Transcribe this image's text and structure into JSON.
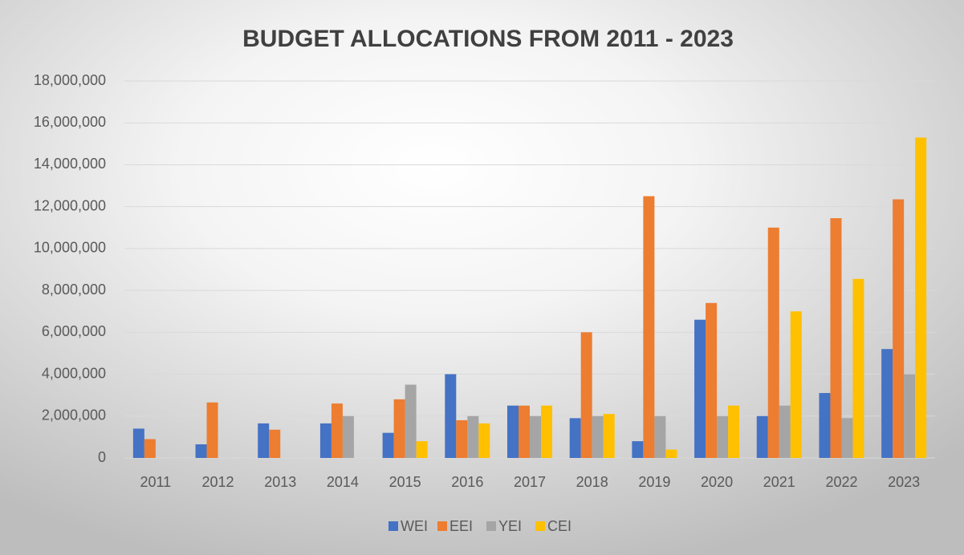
{
  "chart_data": {
    "type": "bar",
    "title": "BUDGET ALLOCATIONS FROM 2011 - 2023",
    "categories": [
      "2011",
      "2012",
      "2013",
      "2014",
      "2015",
      "2016",
      "2017",
      "2018",
      "2019",
      "2020",
      "2021",
      "2022",
      "2023"
    ],
    "series": [
      {
        "name": "WEI",
        "color": "#4472c4",
        "values": [
          1400000,
          650000,
          1650000,
          1650000,
          1200000,
          4000000,
          2500000,
          1900000,
          800000,
          6600000,
          2000000,
          3100000,
          5200000
        ]
      },
      {
        "name": "EEI",
        "color": "#ed7d31",
        "values": [
          900000,
          2650000,
          1350000,
          2600000,
          2800000,
          1800000,
          2500000,
          6000000,
          12500000,
          7400000,
          11000000,
          11450000,
          12350000
        ]
      },
      {
        "name": "YEI",
        "color": "#a5a5a5",
        "values": [
          null,
          null,
          null,
          2000000,
          3500000,
          2000000,
          2000000,
          2000000,
          2000000,
          2000000,
          2500000,
          1900000,
          4000000
        ]
      },
      {
        "name": "CEI",
        "color": "#ffc000",
        "values": [
          null,
          null,
          null,
          null,
          800000,
          1650000,
          2500000,
          2100000,
          400000,
          2500000,
          7000000,
          8550000,
          15300000
        ]
      }
    ],
    "ylim": [
      0,
      18000000
    ],
    "yticks": [
      0,
      {
        "value": 2000000,
        "label": "2,000,000"
      },
      {
        "value": 4000000,
        "label": "4,000,000"
      },
      {
        "value": 6000000,
        "label": "6,000,000"
      },
      {
        "value": 8000000,
        "label": "8,000,000"
      },
      {
        "value": 10000000,
        "label": "10,000,000"
      },
      {
        "value": 12000000,
        "label": "12,000,000"
      },
      {
        "value": 14000000,
        "label": "14,000,000"
      },
      {
        "value": 16000000,
        "label": "16,000,000"
      },
      {
        "value": 18000000,
        "label": "18,000,000"
      }
    ],
    "grid": true,
    "legend": "bottom"
  }
}
